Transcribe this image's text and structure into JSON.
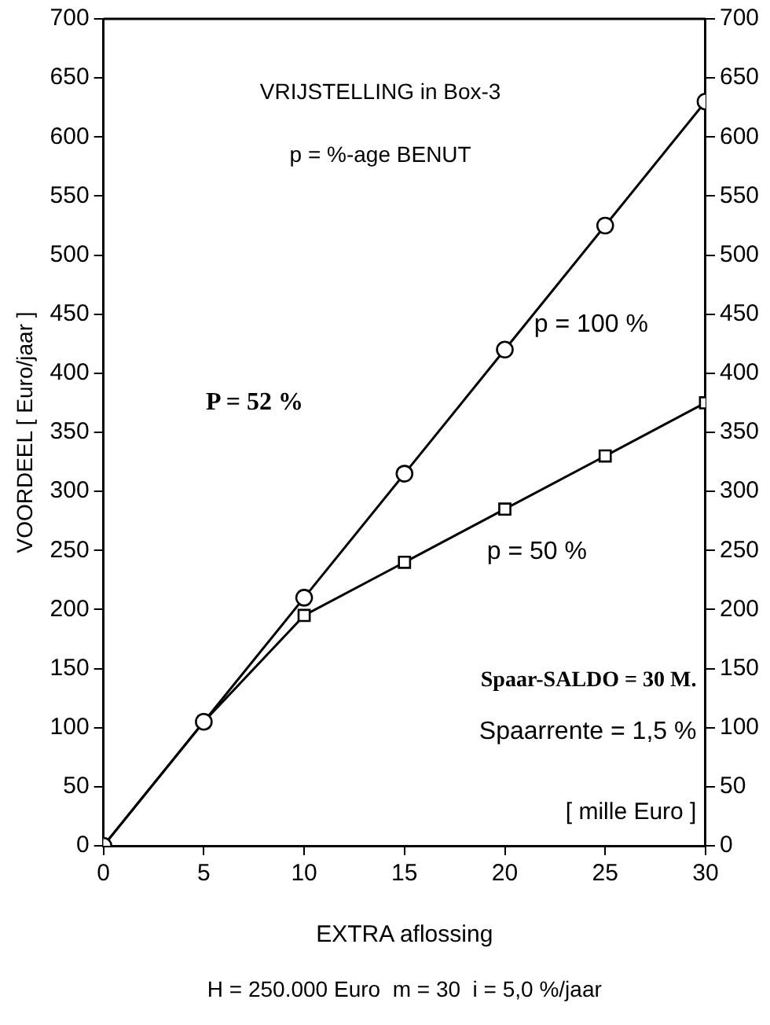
{
  "chart_data": {
    "type": "line",
    "xlabel": "EXTRA aflossing",
    "ylabel": "VOORDEEL [ Euro/jaar ]",
    "x": [
      0,
      5,
      10,
      15,
      20,
      25,
      30
    ],
    "series": [
      {
        "name": "p = 100 %",
        "color": "#000000",
        "marker": "circle",
        "values": [
          0,
          105,
          210,
          315,
          420,
          525,
          630
        ]
      },
      {
        "name": "p = 50 %",
        "color": "#000000",
        "marker": "square",
        "values": [
          0,
          105,
          195,
          240,
          285,
          330,
          375
        ]
      }
    ],
    "xlim": [
      0,
      30
    ],
    "xticks": [
      0,
      5,
      10,
      15,
      20,
      25,
      30
    ],
    "ylim": [
      0,
      700
    ],
    "yticks": [
      0,
      50,
      100,
      150,
      200,
      250,
      300,
      350,
      400,
      450,
      500,
      550,
      600,
      650,
      700
    ],
    "y2lim": [
      0,
      700
    ],
    "y2ticks": [
      0,
      50,
      100,
      150,
      200,
      250,
      300,
      350,
      400,
      450,
      500,
      550,
      600,
      650,
      700
    ],
    "annotations": [
      "VRIJSTELLING in Box-3",
      "p = %-age BENUT",
      "P = 52 %",
      "Spaar-SALDO = 30 M.",
      "Spaarrente = 1,5 %",
      "[ mille Euro ]",
      "H = 250.000 Euro  m = 30  i = 5,0 %/jaar"
    ],
    "grid": false,
    "legend": false,
    "line_style": "solid"
  }
}
